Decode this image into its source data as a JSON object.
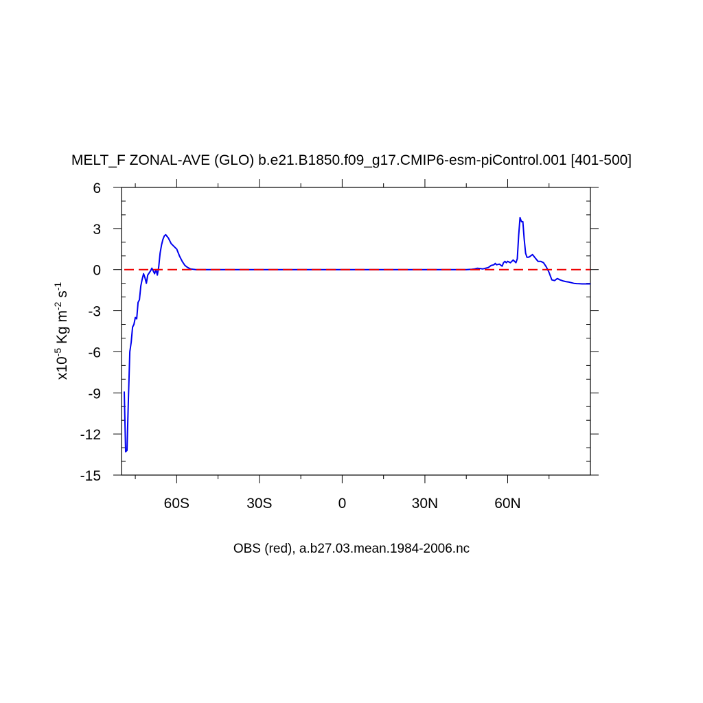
{
  "chart_data": {
    "type": "line",
    "title": "MELT_F ZONAL-AVE (GLO) b.e21.B1850.f09_g17.CMIP6-esm-piControl.001 [401-500]",
    "xlabel": "OBS (red), a.b27.03.mean.1984-2006.nc",
    "ylabel": {
      "prefix": "x10",
      "exp1": "-5",
      "unit1": " Kg m",
      "exp2": "-2",
      "unit2": " s",
      "exp3": "-1"
    },
    "xlim": [
      -80,
      90
    ],
    "ylim": [
      -15,
      6
    ],
    "x_ticks": [
      {
        "value": -60,
        "label": "60S"
      },
      {
        "value": -30,
        "label": "30S"
      },
      {
        "value": 0,
        "label": "0"
      },
      {
        "value": 30,
        "label": "30N"
      },
      {
        "value": 60,
        "label": "60N"
      }
    ],
    "y_ticks": [
      {
        "value": 6,
        "label": "6"
      },
      {
        "value": 3,
        "label": "3"
      },
      {
        "value": 0,
        "label": "0"
      },
      {
        "value": -3,
        "label": "-3"
      },
      {
        "value": -6,
        "label": "-6"
      },
      {
        "value": -9,
        "label": "-9"
      },
      {
        "value": -12,
        "label": "-12"
      },
      {
        "value": -15,
        "label": "-15"
      }
    ],
    "grid": false,
    "series": [
      {
        "color": "#0000ee",
        "style": "solid",
        "x": [
          -79,
          -78.5,
          -78,
          -77.5,
          -77,
          -76.5,
          -76,
          -75.5,
          -75,
          -74.5,
          -74,
          -73.5,
          -73,
          -72.5,
          -72,
          -71.5,
          -71,
          -70.5,
          -70,
          -69.5,
          -69,
          -68.5,
          -68,
          -67.5,
          -67,
          -66.5,
          -66,
          -65.5,
          -65,
          -64.5,
          -64,
          -63,
          -62,
          -61,
          -60,
          -59,
          -58,
          -57,
          -56,
          -55,
          -54,
          -53,
          -52,
          -50,
          -45,
          -40,
          -30,
          -20,
          -10,
          0,
          10,
          20,
          30,
          40,
          45,
          47,
          48,
          49,
          50,
          51,
          52,
          53,
          54,
          55,
          55.5,
          56,
          57,
          58,
          58.5,
          59,
          59.5,
          60,
          61,
          62,
          63,
          63.5,
          64,
          64.5,
          65,
          65.5,
          66,
          66.5,
          67,
          67.5,
          68,
          69,
          70,
          71,
          72,
          73,
          74,
          75,
          76,
          77,
          78,
          79,
          80,
          81,
          82,
          83,
          84,
          85,
          86,
          87,
          88,
          89,
          90
        ],
        "y": [
          -8.9,
          -13.3,
          -13.2,
          -9.5,
          -6.0,
          -5.3,
          -4.2,
          -4.0,
          -3.5,
          -3.6,
          -2.4,
          -2.2,
          -1.2,
          -0.7,
          -0.3,
          -0.6,
          -1.0,
          -0.4,
          -0.25,
          -0.1,
          0.1,
          -0.1,
          -0.3,
          0.0,
          -0.4,
          0.2,
          1.2,
          1.8,
          2.2,
          2.45,
          2.55,
          2.3,
          1.9,
          1.7,
          1.5,
          1.0,
          0.6,
          0.3,
          0.15,
          0.05,
          0.02,
          0.0,
          0.0,
          0.0,
          0.0,
          0.0,
          0.0,
          0.0,
          0.0,
          0.0,
          0.0,
          0.0,
          0.0,
          0.0,
          0.0,
          0.02,
          0.05,
          0.1,
          0.08,
          0.05,
          0.1,
          0.15,
          0.3,
          0.35,
          0.45,
          0.35,
          0.4,
          0.25,
          0.5,
          0.6,
          0.5,
          0.6,
          0.5,
          0.7,
          0.5,
          0.8,
          2.5,
          3.8,
          3.5,
          3.5,
          2.2,
          1.2,
          0.9,
          0.9,
          0.95,
          1.1,
          0.85,
          0.6,
          0.6,
          0.5,
          0.2,
          -0.2,
          -0.75,
          -0.8,
          -0.65,
          -0.75,
          -0.82,
          -0.87,
          -0.9,
          -0.95,
          -1.0,
          -1.02,
          -1.03,
          -1.04,
          -1.04,
          -1.04,
          -1.04
        ]
      },
      {
        "color": "#ee0000",
        "style": "dashed",
        "x": [
          -79,
          90
        ],
        "y": [
          0,
          0
        ]
      }
    ]
  }
}
